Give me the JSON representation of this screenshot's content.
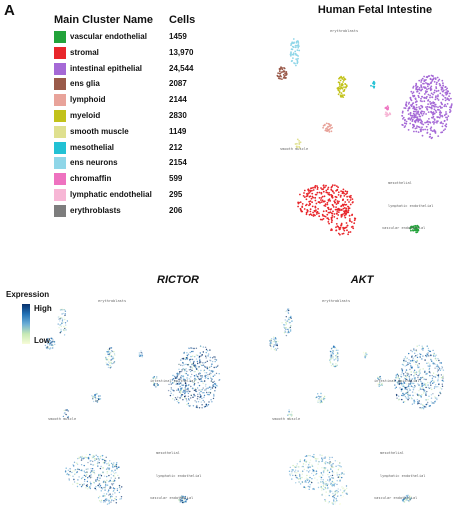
{
  "panel_label": "A",
  "title": "Human Fetal Intestine",
  "legend": {
    "name_header": "Main Cluster Name",
    "count_header": "Cells",
    "items": [
      {
        "name": "vascular endothelial",
        "cells": "1459",
        "color": "#22a33a"
      },
      {
        "name": "stromal",
        "cells": "13,970",
        "color": "#e8262b"
      },
      {
        "name": "intestinal epithelial",
        "cells": "24,544",
        "color": "#a569d6"
      },
      {
        "name": "ens glia",
        "cells": "2087",
        "color": "#9a5a4a"
      },
      {
        "name": "lymphoid",
        "cells": "2144",
        "color": "#e8a39a"
      },
      {
        "name": "myeloid",
        "cells": "2830",
        "color": "#c2c21a"
      },
      {
        "name": "smooth muscle",
        "cells": "1149",
        "color": "#dfe08f"
      },
      {
        "name": "mesothelial",
        "cells": "212",
        "color": "#22c1d4"
      },
      {
        "name": "ens neurons",
        "cells": "2154",
        "color": "#8fd6e8"
      },
      {
        "name": "chromaffin",
        "cells": "599",
        "color": "#ee72c0"
      },
      {
        "name": "lymphatic endothelial",
        "cells": "295",
        "color": "#f7b6d5"
      },
      {
        "name": "erythroblasts",
        "cells": "206",
        "color": "#7d7d7d"
      }
    ]
  },
  "expression_legend": {
    "title": "Expression",
    "high": "High",
    "low": "Low"
  },
  "chart_data": [
    {
      "type": "scatter",
      "title": "Human Fetal Intestine",
      "cluster_labels": [
        "erythroblasts",
        "smooth muscle",
        "mesothelial",
        "lymphatic endothelial",
        "vascular endothelial"
      ]
    },
    {
      "type": "scatter",
      "title": "RICTOR",
      "color_scale": "Expression",
      "cluster_labels": [
        "erythroblasts",
        "intestinal epithelial",
        "mesothelial",
        "smooth muscle",
        "lymphatic endothelial",
        "vascular endothelial"
      ]
    },
    {
      "type": "scatter",
      "title": "AKT",
      "color_scale": "Expression",
      "cluster_labels": [
        "erythroblasts",
        "intestinal epithelial",
        "mesothelial",
        "smooth muscle",
        "lymphatic endothelial",
        "vascular endothelial"
      ]
    }
  ]
}
